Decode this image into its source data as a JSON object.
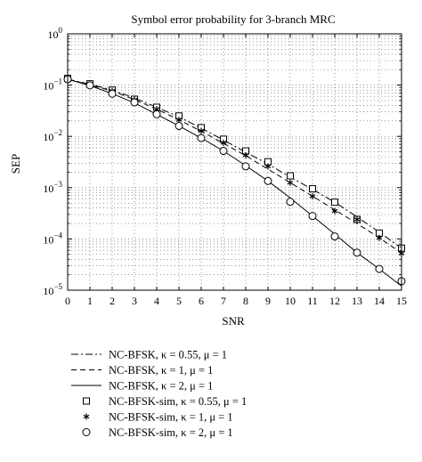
{
  "chart_data": {
    "type": "line",
    "title": "Symbol error probability for 3-branch MRC",
    "xlabel": "SNR",
    "ylabel": "SEP",
    "xlim": [
      0,
      15
    ],
    "ylim": [
      1e-05,
      1
    ],
    "yscale": "log",
    "x_ticks": [
      0,
      1,
      2,
      3,
      4,
      5,
      6,
      7,
      8,
      9,
      10,
      11,
      12,
      13,
      14,
      15
    ],
    "x_tick_labels": [
      "0",
      "1",
      "2",
      "3",
      "4",
      "5",
      "6",
      "7",
      "8",
      "9",
      "10",
      "11",
      "12",
      "13",
      "14",
      "15"
    ],
    "y_tick_labels": [
      {
        "value": 1e-05,
        "base": "10",
        "exp": "−5"
      },
      {
        "value": 0.0001,
        "base": "10",
        "exp": "−4"
      },
      {
        "value": 0.001,
        "base": "10",
        "exp": "−3"
      },
      {
        "value": 0.01,
        "base": "10",
        "exp": "−2"
      },
      {
        "value": 0.1,
        "base": "10",
        "exp": "−1"
      },
      {
        "value": 1,
        "base": "10",
        "exp": "0"
      }
    ],
    "grid": true,
    "legend_position": "below",
    "x": [
      0,
      1,
      2,
      3,
      4,
      5,
      6,
      7,
      8,
      9,
      10,
      11,
      12,
      13,
      14,
      15
    ],
    "series": [
      {
        "name": "NC-BFSK, κ = 0.55, μ = 1",
        "style": "dashdot",
        "marker": "none",
        "values": [
          0.13,
          0.104,
          0.08,
          0.056,
          0.037,
          0.024,
          0.0145,
          0.0085,
          0.0049,
          0.0029,
          0.0016,
          0.00093,
          0.00052,
          0.00027,
          0.000135,
          6.6e-05
        ]
      },
      {
        "name": "NC-BFSK, κ = 1, μ = 1",
        "style": "dashed",
        "marker": "none",
        "values": [
          0.13,
          0.101,
          0.077,
          0.052,
          0.034,
          0.021,
          0.0126,
          0.0073,
          0.0042,
          0.0023,
          0.00125,
          0.00068,
          0.00037,
          0.0002,
          0.000105,
          5.3e-05
        ]
      },
      {
        "name": "NC-BFSK, κ = 2, μ = 1",
        "style": "solid",
        "marker": "none",
        "values": [
          0.13,
          0.098,
          0.068,
          0.045,
          0.027,
          0.016,
          0.0093,
          0.0052,
          0.0027,
          0.00135,
          0.00063,
          0.00028,
          0.000124,
          5.4e-05,
          2.6e-05,
          1.2e-05
        ]
      },
      {
        "name": "NC-BFSK-sim, κ = 0.55, μ = 1",
        "style": "none",
        "marker": "square",
        "values": [
          0.135,
          0.106,
          0.08,
          0.053,
          0.037,
          0.025,
          0.0148,
          0.0088,
          0.0052,
          0.0032,
          0.0017,
          0.00095,
          0.00052,
          0.00024,
          0.00013,
          6.6e-05
        ]
      },
      {
        "name": "NC-BFSK-sim, κ = 1, μ = 1",
        "style": "none",
        "marker": "star",
        "values": [
          0.13,
          0.102,
          0.077,
          0.052,
          0.034,
          0.021,
          0.0128,
          0.0075,
          0.0043,
          0.0026,
          0.00125,
          0.00068,
          0.00035,
          0.00024,
          0.000105,
          5.2e-05
        ]
      },
      {
        "name": "NC-BFSK-sim, κ = 2, μ = 1",
        "style": "none",
        "marker": "circle",
        "values": [
          0.13,
          0.099,
          0.068,
          0.046,
          0.027,
          0.016,
          0.0093,
          0.0052,
          0.0026,
          0.00135,
          0.00053,
          0.00028,
          0.000112,
          5.4e-05,
          2.6e-05,
          1.5e-05
        ]
      }
    ]
  }
}
